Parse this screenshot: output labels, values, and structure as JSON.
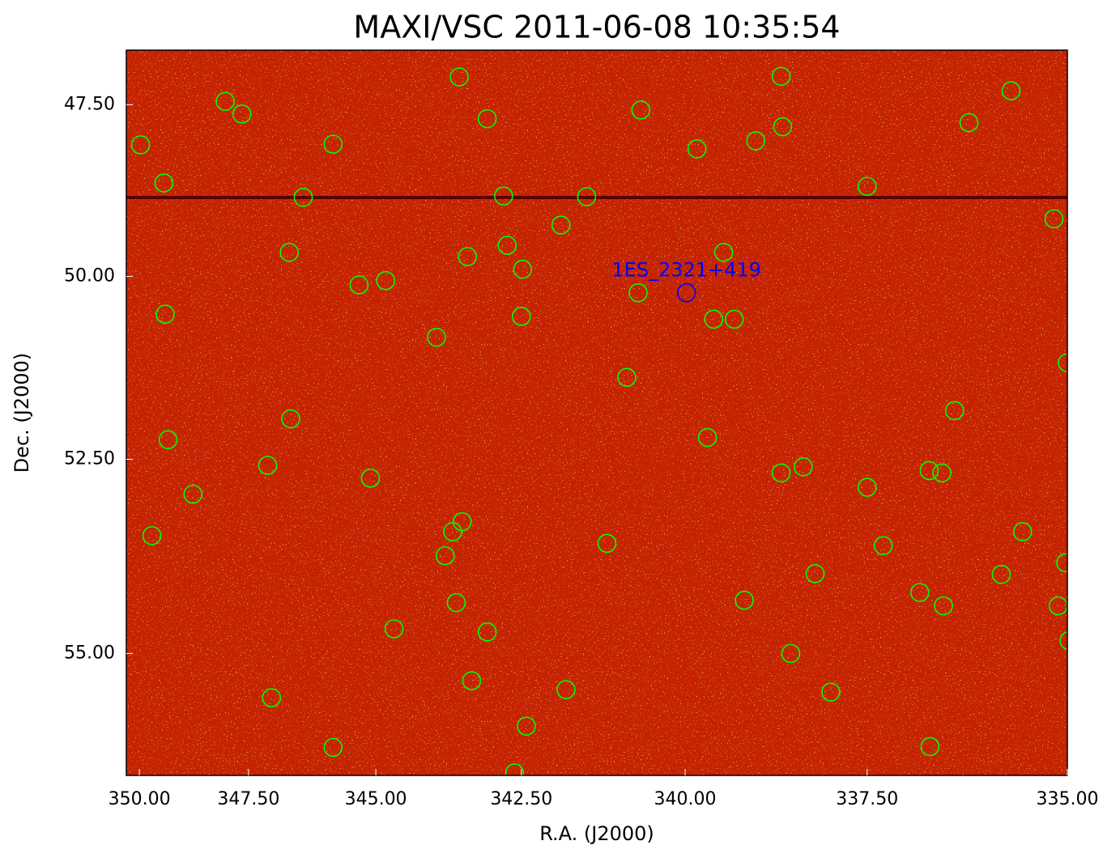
{
  "chart_data": {
    "type": "scatter",
    "title": "MAXI/VSC 2011-06-08 10:35:54",
    "x_label": "R.A. (J2000)",
    "y_label": "Dec. (J2000)",
    "xlim": [
      350.33,
      335
    ],
    "ylim": [
      46.67,
      56.5
    ],
    "xticks": [
      {
        "value": 350,
        "label": "350.00"
      },
      {
        "value": 347.5,
        "label": "347.50"
      },
      {
        "value": 345,
        "label": "345.00"
      },
      {
        "value": 342.5,
        "label": "342.50"
      },
      {
        "value": 340,
        "label": "340.00"
      },
      {
        "value": 337.5,
        "label": "337.50"
      },
      {
        "value": 335,
        "label": "335.00"
      }
    ],
    "yticks": [
      {
        "value": 47.5,
        "label": "47.50"
      },
      {
        "value": 50,
        "label": "50.00"
      },
      {
        "value": 52.5,
        "label": "52.50"
      },
      {
        "value": 55,
        "label": "55.00"
      }
    ],
    "y_inverted": true,
    "series": [
      {
        "color": "#00ff00",
        "x": [
          349.97,
          349.4,
          349.37,
          349.3,
          349.69,
          348.72,
          348.0,
          347.64,
          346.38,
          346.66,
          346.63,
          347.1,
          347.02,
          345.8,
          345.8,
          345.31,
          344.82,
          345.1,
          344.67,
          343.53,
          343.06,
          343.92,
          343.39,
          342.79,
          342.73,
          342.48,
          342.5,
          343.48,
          343.64,
          343.77,
          343.58,
          343.06,
          343.32,
          342.42,
          342.61,
          341.87,
          341.47,
          341.79,
          341.16,
          340.86,
          340.69,
          340.65,
          339.83,
          339.68,
          339.59,
          339.45,
          339.3,
          339.0,
          339.16,
          338.65,
          338.63,
          338.65,
          338.35,
          338.52,
          338.19,
          337.98,
          337.5,
          337.5,
          337.29,
          336.82,
          336.7,
          336.54,
          336.52,
          336.69,
          336.38,
          336.2,
          335.68,
          335.16,
          335.0,
          335.8,
          335.54,
          335.02,
          335.11,
          334.98
        ],
        "values": [
          48.1,
          48.66,
          50.53,
          52.24,
          53.5,
          52.96,
          47.45,
          47.64,
          48.87,
          49.66,
          51.96,
          52.58,
          55.55,
          48.09,
          56.16,
          50.12,
          50.06,
          52.75,
          54.69,
          47.08,
          47.71,
          50.85,
          49.72,
          48.85,
          49.56,
          49.9,
          50.56,
          53.32,
          53.45,
          53.76,
          54.36,
          54.73,
          55.34,
          55.9,
          56.47,
          49.27,
          48.86,
          55.45,
          53.6,
          51.4,
          50.23,
          47.58,
          48.16,
          52.21,
          50.6,
          49.66,
          50.6,
          48.04,
          54.33,
          47.07,
          47.83,
          52.68,
          52.6,
          55.0,
          53.99,
          55.48,
          48.71,
          52.87,
          53.63,
          54.23,
          52.65,
          52.68,
          54.4,
          56.15,
          51.85,
          47.77,
          47.29,
          49.18,
          51.2,
          54.0,
          53.45,
          53.85,
          54.4,
          54.84
        ]
      },
      {
        "color": "#0000ff",
        "label": "1ES_2321+419",
        "x": [
          339.98
        ],
        "values": [
          50.23
        ]
      }
    ]
  }
}
